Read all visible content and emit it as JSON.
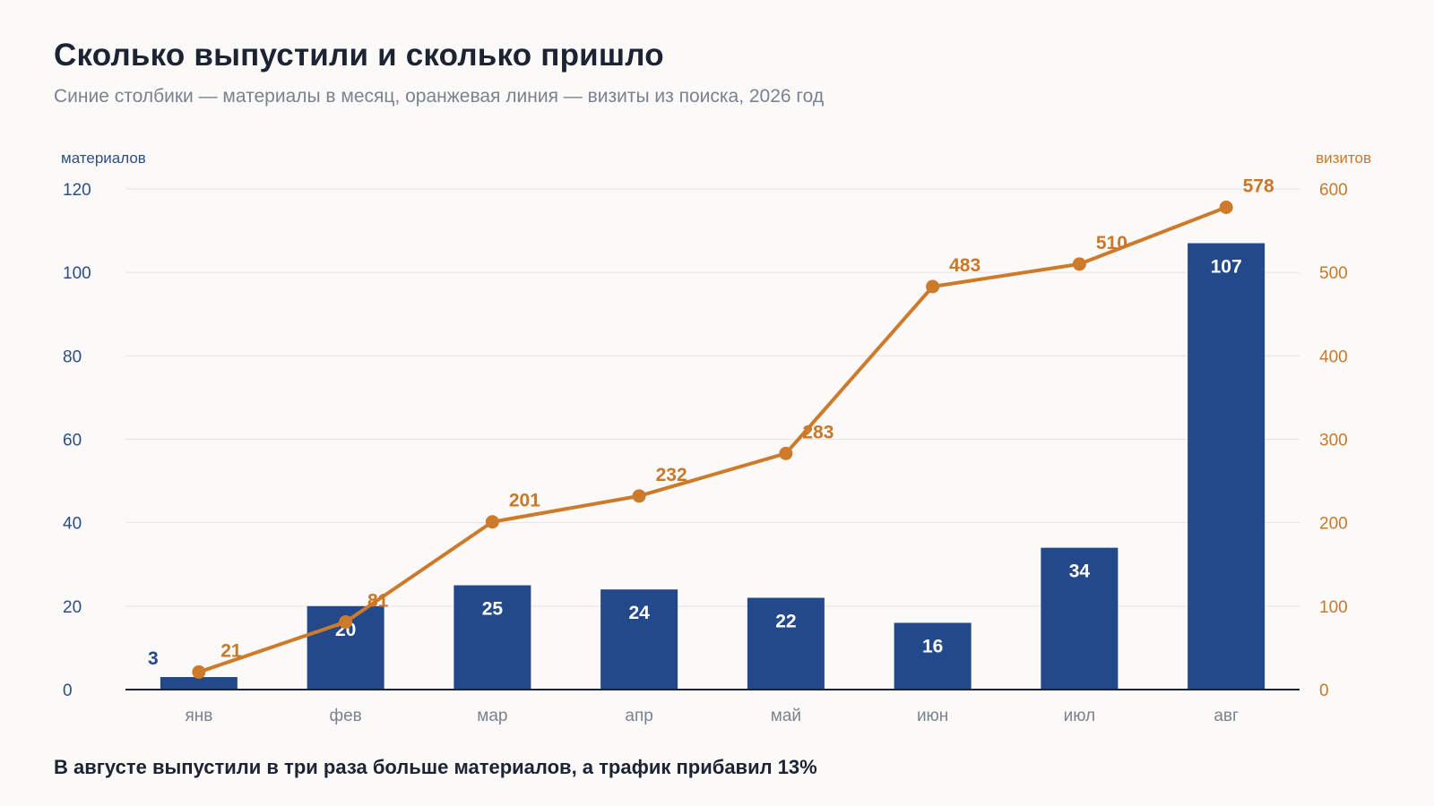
{
  "title": "Сколько выпустили и сколько пришло",
  "subtitle": "Синие столбики — материалы в месяц, оранжевая линия — визиты из поиска, 2026 год",
  "conclusion": "В августе выпустили в три раза больше материалов, а трафик прибавил 13%",
  "colors": {
    "bars": "#24498a",
    "line": "#cd7a2b",
    "grid": "#e4e4e4",
    "baseline": "#1c2333"
  },
  "chart_data": {
    "type": "bar",
    "categories": [
      "янв",
      "фев",
      "мар",
      "апр",
      "май",
      "июн",
      "июл",
      "авг"
    ],
    "series": [
      {
        "type": "bar",
        "axis": "left",
        "values": [
          3,
          20,
          25,
          24,
          22,
          16,
          34,
          107
        ]
      },
      {
        "type": "line",
        "axis": "right",
        "values": [
          21,
          81,
          201,
          232,
          283,
          483,
          510,
          578
        ]
      }
    ],
    "ylabel_left": "материалов",
    "ylabel_right": "визитов",
    "ylim_left": [
      0,
      120
    ],
    "yticks_left": [
      "0",
      "20",
      "40",
      "60",
      "80",
      "100",
      "120"
    ],
    "ylim_right": [
      0,
      600
    ],
    "yticks_right": [
      "0",
      "100",
      "200",
      "300",
      "400",
      "500",
      "600"
    ],
    "grid": true
  }
}
